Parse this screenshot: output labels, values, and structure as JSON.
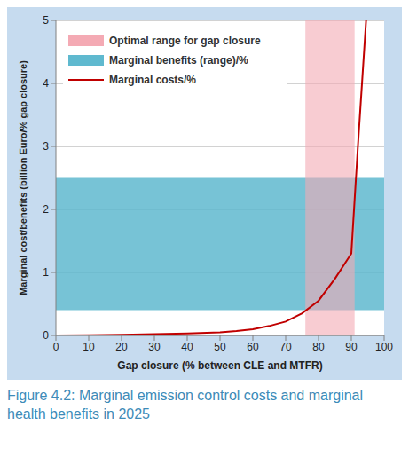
{
  "chart_data": {
    "type": "line",
    "caption": "Figure 4.2: Marginal emission control costs and marginal health benefits in 2025",
    "x_label": "Gap closure (% between CLE and MTFR)",
    "y_label": "Marginal cost/benefits (billion Euro/% gap closure)",
    "xlim": [
      0,
      100
    ],
    "xticks": [
      0,
      10,
      20,
      30,
      40,
      50,
      60,
      70,
      80,
      90,
      100
    ],
    "ylim": [
      0,
      5
    ],
    "yticks": [
      0,
      1,
      2,
      3,
      4,
      5
    ],
    "grid": true,
    "legend": "top",
    "ranges": [
      {
        "name": "Optimal range for gap closure",
        "axis": "x",
        "from": 76,
        "to": 91,
        "color": "#f4aab4"
      },
      {
        "name": "Marginal benefits (range)/%",
        "axis": "y",
        "from": 0.4,
        "to": 2.5,
        "color": "#5fb9cf"
      }
    ],
    "series": [
      {
        "name": "Marginal costs/%",
        "color": "#c00000",
        "x": [
          0,
          10,
          20,
          30,
          40,
          50,
          55,
          60,
          65,
          70,
          75,
          80,
          85,
          90,
          92,
          94.5
        ],
        "values": [
          0,
          0.005,
          0.01,
          0.02,
          0.03,
          0.05,
          0.07,
          0.1,
          0.15,
          0.22,
          0.35,
          0.55,
          0.9,
          1.3,
          3.0,
          5.0
        ]
      }
    ]
  }
}
